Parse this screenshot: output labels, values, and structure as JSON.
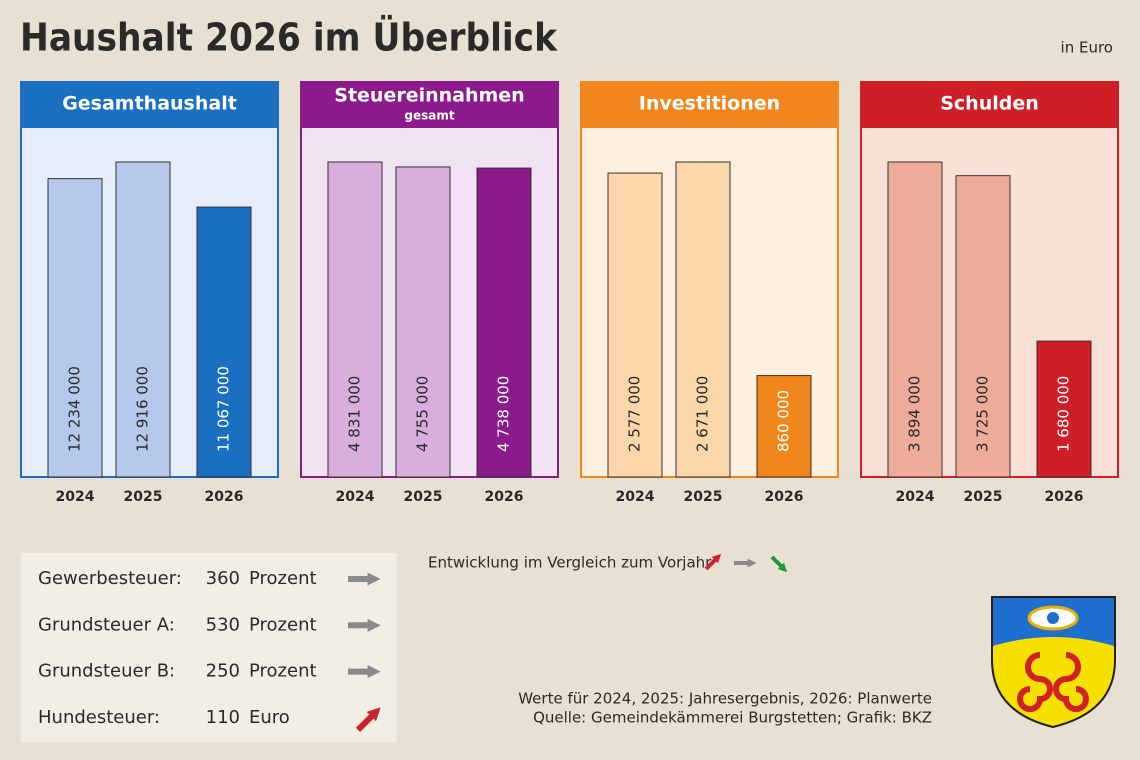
{
  "header": {
    "title": "Haushalt 2026 im Überblick",
    "unit": "in Euro"
  },
  "chart_data": [
    {
      "type": "bar",
      "title": "Gesamthaushalt",
      "categories": [
        "2024",
        "2025",
        "2026"
      ],
      "values": [
        12234000,
        12916000,
        11067000
      ],
      "value_labels": [
        "12 234 000",
        "12 916 000",
        "11 067 000"
      ],
      "color": "#1b6fc0",
      "colors": [
        "#b5c8ec",
        "#b5c8ec",
        "#1b6fc0"
      ],
      "background": "#e6ecf8"
    },
    {
      "type": "bar",
      "title": "Steuereinnahmen",
      "subtitle": "gesamt",
      "categories": [
        "2024",
        "2025",
        "2026"
      ],
      "values": [
        4831000,
        4755000,
        4738000
      ],
      "value_labels": [
        "4 831 000",
        "4 755 000",
        "4 738 000"
      ],
      "color": "#8b1a8b",
      "colors": [
        "#d9aedd",
        "#d9aedd",
        "#8b1a8b"
      ],
      "background": "#f1e3f3"
    },
    {
      "type": "bar",
      "title": "Investitionen",
      "categories": [
        "2024",
        "2025",
        "2026"
      ],
      "values": [
        2577000,
        2671000,
        860000
      ],
      "value_labels": [
        "2 577 000",
        "2 671 000",
        "860 000"
      ],
      "color": "#f0861c",
      "colors": [
        "#fbd6a8",
        "#fbd6a8",
        "#f0861c"
      ],
      "background": "#fdefdf"
    },
    {
      "type": "bar",
      "title": "Schulden",
      "categories": [
        "2024",
        "2025",
        "2026"
      ],
      "values": [
        3894000,
        3725000,
        1680000
      ],
      "value_labels": [
        "3 894 000",
        "3 725 000",
        "1 680 000"
      ],
      "color": "#cf1f26",
      "colors": [
        "#eeab99",
        "#eeab99",
        "#cf1f26"
      ],
      "background": "#f9e0d6"
    }
  ],
  "taxes": [
    {
      "label": "Gewerbesteuer:",
      "value": 360,
      "unit": "Prozent",
      "trend": "same"
    },
    {
      "label": "Grundsteuer A:",
      "value": 530,
      "unit": "Prozent",
      "trend": "same"
    },
    {
      "label": "Grundsteuer B:",
      "value": 250,
      "unit": "Prozent",
      "trend": "same"
    },
    {
      "label": "Hundesteuer:",
      "value": 110,
      "unit": "Euro",
      "trend": "up"
    }
  ],
  "legend": {
    "text": "Entwicklung im Vergleich zum Vorjahr"
  },
  "notes": [
    "Werte für 2024, 2025: Jahresergebnis, 2026: Planwerte",
    "Quelle: Gemeindekämmerei Burgstetten; Grafik: BKZ"
  ]
}
